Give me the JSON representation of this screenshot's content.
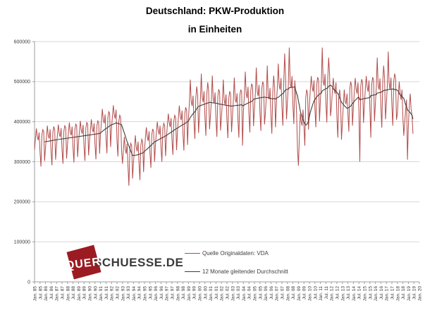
{
  "title": {
    "line1": "Deutschland: PKW-Produktion",
    "line2": "in Einheiten"
  },
  "legend": [
    {
      "label": "Quelle Originaldaten: VDA",
      "color": "#b24c4a"
    },
    {
      "label": "12 Monate gleitender Durchschnitt",
      "color": "#3d3d3d"
    }
  ],
  "watermark": {
    "box_text": "QUER",
    "text": "SCHUESSE.DE",
    "box_color": "#9c1b22",
    "text_color": "#3b3b3b"
  },
  "chart_data": {
    "type": "line",
    "title": "Deutschland: PKW-Produktion in Einheiten",
    "x_start": "Jan 1985",
    "x_end_axis": "Jan 2020",
    "x_slots": 421,
    "grid": "horizontal",
    "legend_position": "inside-bottom-center",
    "ylim": [
      0,
      600000
    ],
    "y_ticks": [
      0,
      100000,
      200000,
      300000,
      400000,
      500000,
      600000
    ],
    "y_tick_labels": [
      "0",
      "100000",
      "200000",
      "300000",
      "400000",
      "500000",
      "600000"
    ],
    "x_tick_every_months": 6,
    "x_tick_labels": [
      "Jan. 85",
      "Jul. 85",
      "Jan. 86",
      "Jul. 86",
      "Jan. 87",
      "Jul. 87",
      "Jan. 88",
      "Jul. 88",
      "Jan. 89",
      "Jul. 89",
      "Jan. 90",
      "Jul. 90",
      "Jan. 91",
      "Jul. 91",
      "Jan. 92",
      "Jul. 92",
      "Jan. 93",
      "Jul. 93",
      "Jan. 94",
      "Jul. 94",
      "Jan. 95",
      "Jul. 95",
      "Jan. 96",
      "Jul. 96",
      "Jan. 97",
      "Jul. 97",
      "Jan. 98",
      "Jul. 98",
      "Jan. 99",
      "Jul. 99",
      "Jan. 00",
      "Jul. 00",
      "Jan. 01",
      "Jul. 01",
      "Jan. 02",
      "Jul. 02",
      "Jan. 03",
      "Jul. 03",
      "Jan. 04",
      "Jul. 04",
      "Jan. 05",
      "Jul. 05",
      "Jan. 06",
      "Jul. 06",
      "Jan. 07",
      "Jul. 07",
      "Jan. 08",
      "Jul. 08",
      "Jan. 09",
      "Jul. 09",
      "Jan. 10",
      "Jul. 10",
      "Jan. 11",
      "Jul. 11",
      "Jan. 12",
      "Jul. 12",
      "Jan. 13",
      "Jul. 13",
      "Jan. 14",
      "Jul. 14",
      "Jan. 15",
      "Jul. 15",
      "Jan. 16",
      "Jul. 16",
      "Jan. 17",
      "Jul. 17",
      "Jan. 18",
      "Jul. 18",
      "Jan. 19",
      "Jul. 19",
      "Jan. 20"
    ],
    "series": [
      {
        "name": "Quelle Originaldaten: VDA",
        "color": "#b24c4a",
        "note": "monthly PKW production, units; values estimated from plot",
        "values": [
          330000,
          358000,
          383000,
          362000,
          354000,
          373000,
          323000,
          288000,
          366000,
          380000,
          376000,
          302000,
          337000,
          360000,
          390000,
          365000,
          358000,
          381000,
          326000,
          291000,
          373000,
          388000,
          380000,
          305000,
          340000,
          368000,
          393000,
          370000,
          362000,
          384000,
          330000,
          295000,
          376000,
          390000,
          386000,
          308000,
          344000,
          372000,
          398000,
          374000,
          366000,
          388000,
          334000,
          298000,
          380000,
          394000,
          390000,
          312000,
          348000,
          376000,
          402000,
          378000,
          370000,
          392000,
          338000,
          302000,
          384000,
          398000,
          394000,
          316000,
          352000,
          380000,
          406000,
          382000,
          374000,
          396000,
          342000,
          306000,
          388000,
          402000,
          398000,
          320000,
          370000,
          400000,
          432000,
          405000,
          396000,
          418000,
          360000,
          321000,
          409000,
          425000,
          420000,
          337000,
          382000,
          413000,
          441000,
          417000,
          408000,
          430000,
          352000,
          313000,
          401000,
          416000,
          410000,
          326000,
          295000,
          330000,
          362000,
          332000,
          320000,
          345000,
          288000,
          240000,
          330000,
          346000,
          340000,
          258000,
          298000,
          332000,
          366000,
          336000,
          326000,
          350000,
          298000,
          254000,
          340000,
          356000,
          350000,
          274000,
          328000,
          360000,
          386000,
          362000,
          352000,
          376000,
          320000,
          285000,
          368000,
          382000,
          375000,
          300000,
          344000,
          374000,
          400000,
          378000,
          368000,
          390000,
          336000,
          300000,
          382000,
          396000,
          390000,
          314000,
          361000,
          393000,
          420000,
          397000,
          387000,
          409000,
          354000,
          317000,
          401000,
          416000,
          410000,
          329000,
          376000,
          410000,
          440000,
          414000,
          404000,
          428000,
          368000,
          328000,
          420000,
          436000,
          428000,
          342000,
          409000,
          448000,
          505000,
          450000,
          439000,
          465000,
          400000,
          357000,
          458000,
          488000,
          468000,
          372000,
          418000,
          456000,
          520000,
          460000,
          449000,
          476000,
          409000,
          365000,
          468000,
          498000,
          478000,
          381000,
          415000,
          453000,
          515000,
          457000,
          446000,
          473000,
          406000,
          362000,
          463000,
          481000,
          474000,
          378000,
          411000,
          449000,
          505000,
          453000,
          442000,
          468000,
          402000,
          359000,
          458000,
          476000,
          469000,
          374000,
          413000,
          455000,
          510000,
          455000,
          448000,
          471000,
          404000,
          360000,
          465000,
          479000,
          476000,
          340000,
          427000,
          466000,
          525000,
          470000,
          459000,
          487000,
          418000,
          373000,
          477000,
          495000,
          488000,
          389000,
          432000,
          471000,
          535000,
          475000,
          464000,
          492000,
          423000,
          377000,
          482000,
          500000,
          493000,
          393000,
          424000,
          463000,
          540000,
          467000,
          456000,
          484000,
          415000,
          370000,
          474000,
          515000,
          485000,
          386000,
          446000,
          486000,
          545000,
          491000,
          480000,
          509000,
          437000,
          390000,
          498000,
          570000,
          509000,
          406000,
          450000,
          491000,
          585000,
          496000,
          484000,
          514000,
          441000,
          394000,
          503000,
          470000,
          420000,
          330000,
          290000,
          360000,
          420000,
          400000,
          390000,
          430000,
          390000,
          340000,
          460000,
          480000,
          470000,
          380000,
          441000,
          481000,
          514000,
          486000,
          475000,
          503000,
          432000,
          386000,
          493000,
          511000,
          504000,
          401000,
          455000,
          496000,
          585000,
          501000,
          490000,
          519000,
          446000,
          398000,
          508000,
          560000,
          519000,
          414000,
          436000,
          476000,
          509000,
          481000,
          470000,
          498000,
          410000,
          360000,
          460000,
          480000,
          450000,
          355000,
          400000,
          440000,
          480000,
          450000,
          445000,
          470000,
          420000,
          375000,
          480000,
          500000,
          490000,
          390000,
          436000,
          476000,
          509000,
          481000,
          470000,
          498000,
          427000,
          300000,
          488000,
          506000,
          499000,
          397000,
          441000,
          481000,
          514000,
          486000,
          475000,
          503000,
          432000,
          360000,
          493000,
          511000,
          504000,
          401000,
          446000,
          486000,
          560000,
          491000,
          480000,
          508000,
          437000,
          385000,
          498000,
          540000,
          509000,
          406000,
          445000,
          490000,
          575000,
          495000,
          480000,
          510000,
          440000,
          390000,
          500000,
          520000,
          510000,
          405000,
          420000,
          465000,
          500000,
          470000,
          455000,
          480000,
          410000,
          365000,
          400000,
          430000,
          455000,
          305000,
          390000,
          440000,
          470000,
          430000,
          415000,
          370000
        ]
      },
      {
        "name": "12 Monate gleitender Durchschnitt",
        "color": "#3d3d3d",
        "derived": "trailing 12-month moving average of series 0"
      }
    ]
  }
}
